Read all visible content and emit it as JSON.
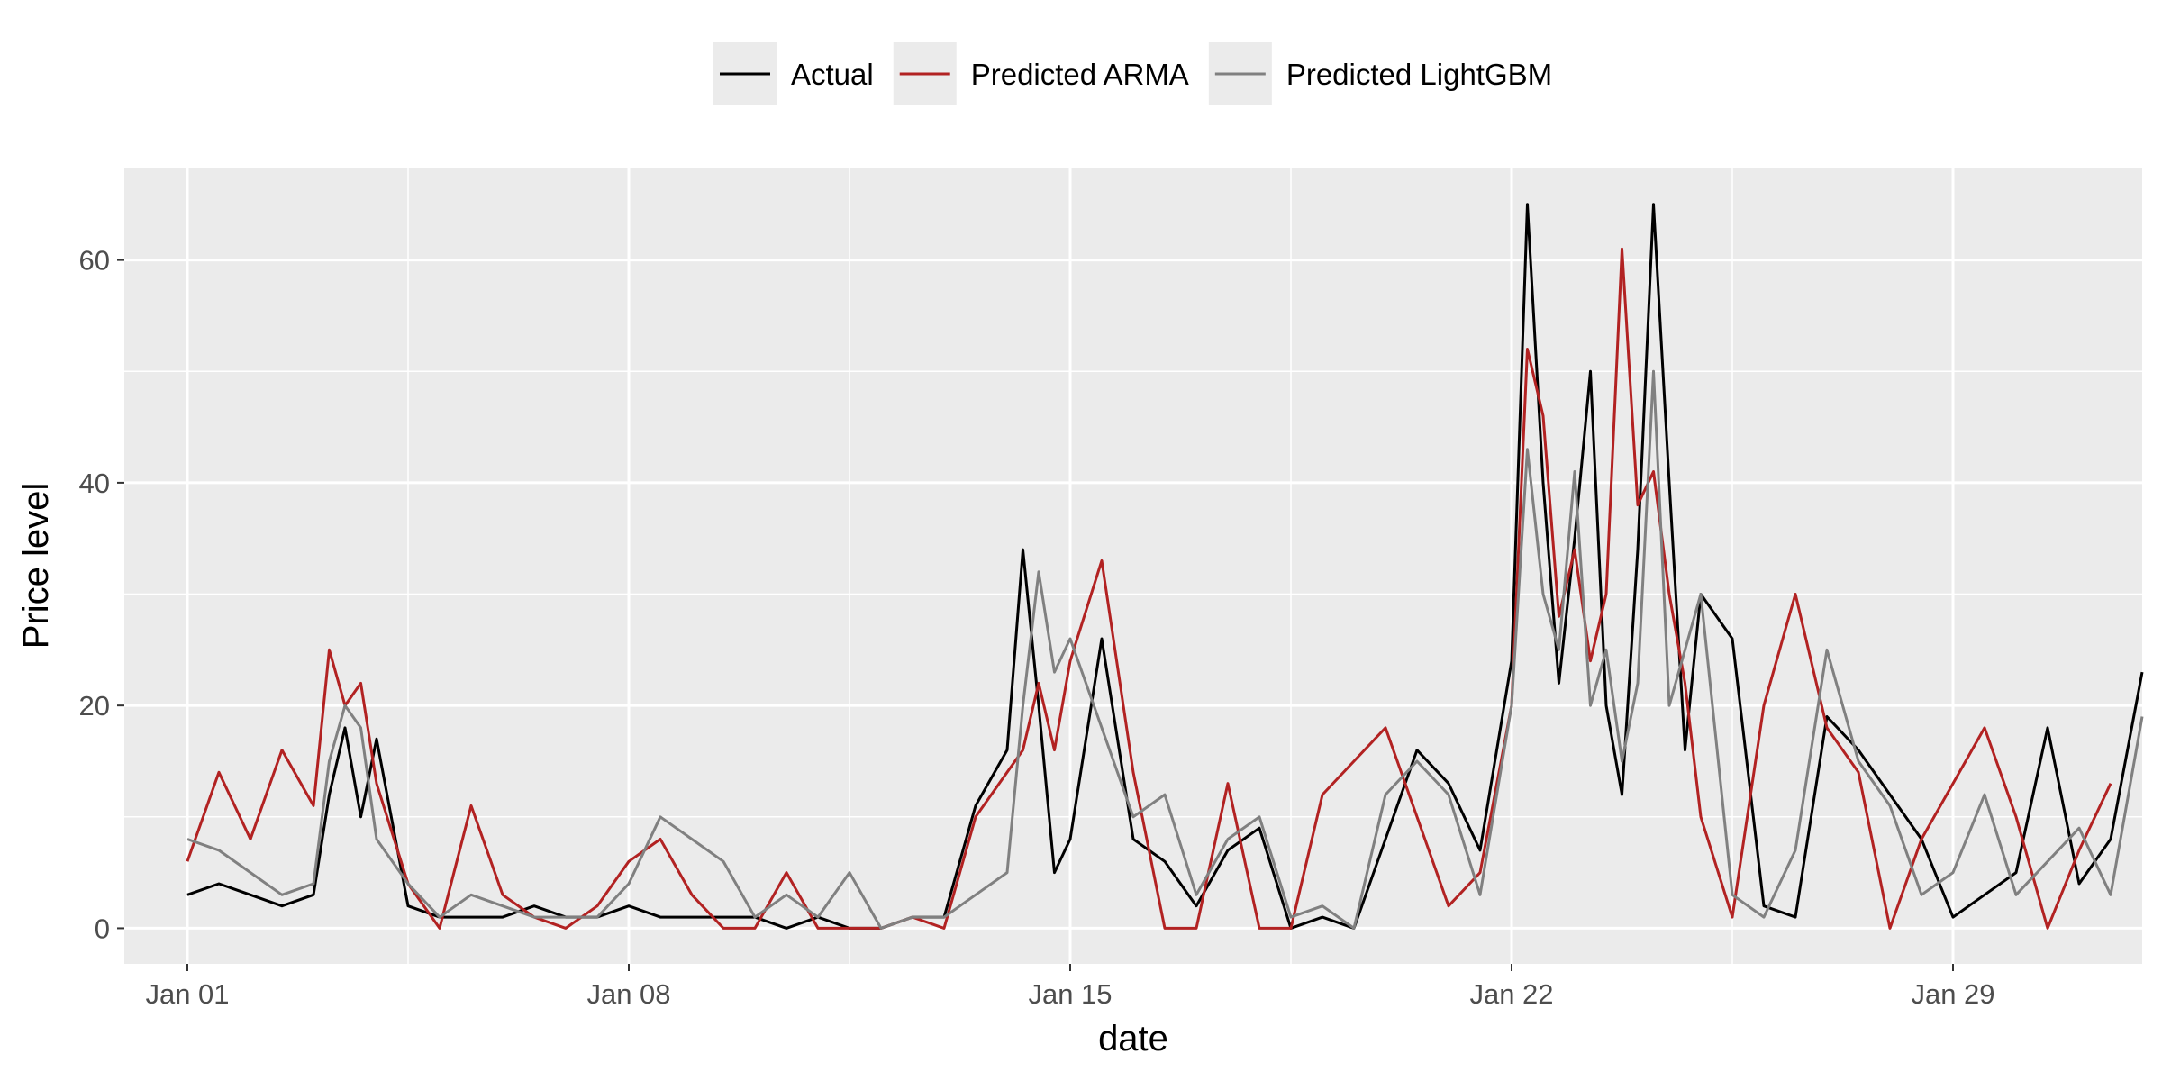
{
  "chart_data": {
    "type": "line",
    "title": "",
    "xlabel": "date",
    "ylabel": "Price level",
    "x_tick_labels": [
      "Jan 01",
      "Jan 08",
      "Jan 15",
      "Jan 22",
      "Jan 29"
    ],
    "y_tick_labels": [
      "0",
      "20",
      "40",
      "60"
    ],
    "y_ticks": [
      0,
      20,
      40,
      60
    ],
    "xlim": [
      "2018-12-31",
      "2019-02-01"
    ],
    "ylim": [
      -3.2,
      68.3
    ],
    "grid": true,
    "legend_position": "top",
    "series": [
      {
        "name": "Actual",
        "color": "#000000",
        "x": [
          "2019-01-01 00:00",
          "2019-01-01 12:00",
          "2019-01-02 00:00",
          "2019-01-02 12:00",
          "2019-01-03 00:00",
          "2019-01-03 06:00",
          "2019-01-03 12:00",
          "2019-01-03 18:00",
          "2019-01-04 00:00",
          "2019-01-04 12:00",
          "2019-01-05 00:00",
          "2019-01-05 12:00",
          "2019-01-06 00:00",
          "2019-01-06 12:00",
          "2019-01-07 00:00",
          "2019-01-07 12:00",
          "2019-01-08 00:00",
          "2019-01-08 12:00",
          "2019-01-09 00:00",
          "2019-01-09 12:00",
          "2019-01-10 00:00",
          "2019-01-10 12:00",
          "2019-01-11 00:00",
          "2019-01-11 12:00",
          "2019-01-12 00:00",
          "2019-01-12 12:00",
          "2019-01-13 00:00",
          "2019-01-13 12:00",
          "2019-01-14 00:00",
          "2019-01-14 06:00",
          "2019-01-14 12:00",
          "2019-01-14 18:00",
          "2019-01-15 00:00",
          "2019-01-15 12:00",
          "2019-01-16 00:00",
          "2019-01-16 12:00",
          "2019-01-17 00:00",
          "2019-01-17 12:00",
          "2019-01-18 00:00",
          "2019-01-18 12:00",
          "2019-01-19 00:00",
          "2019-01-19 12:00",
          "2019-01-20 00:00",
          "2019-01-20 12:00",
          "2019-01-21 00:00",
          "2019-01-21 12:00",
          "2019-01-22 00:00",
          "2019-01-22 06:00",
          "2019-01-22 12:00",
          "2019-01-22 18:00",
          "2019-01-23 00:00",
          "2019-01-23 06:00",
          "2019-01-23 12:00",
          "2019-01-23 18:00",
          "2019-01-24 00:00",
          "2019-01-24 06:00",
          "2019-01-24 12:00",
          "2019-01-24 18:00",
          "2019-01-25 00:00",
          "2019-01-25 12:00",
          "2019-01-26 00:00",
          "2019-01-26 12:00",
          "2019-01-27 00:00",
          "2019-01-27 12:00",
          "2019-01-28 00:00",
          "2019-01-28 12:00",
          "2019-01-29 00:00",
          "2019-01-29 12:00",
          "2019-01-30 00:00",
          "2019-01-30 12:00",
          "2019-01-31 00:00",
          "2019-01-31 12:00",
          "2019-02-01 00:00"
        ],
        "values": [
          3,
          4,
          3,
          2,
          3,
          12,
          18,
          10,
          17,
          2,
          1,
          1,
          1,
          2,
          1,
          1,
          2,
          1,
          1,
          1,
          1,
          0,
          1,
          0,
          0,
          1,
          1,
          11,
          16,
          34,
          20,
          5,
          8,
          26,
          8,
          6,
          2,
          7,
          9,
          0,
          1,
          0,
          8,
          16,
          13,
          7,
          24,
          65,
          40,
          22,
          35,
          50,
          20,
          12,
          34,
          65,
          40,
          16,
          30,
          26,
          2,
          1,
          19,
          16,
          12,
          8,
          1,
          3,
          5,
          18,
          4,
          8,
          23
        ]
      },
      {
        "name": "Predicted ARMA",
        "color": "#b22222",
        "x": [
          "2019-01-01 00:00",
          "2019-01-01 12:00",
          "2019-01-02 00:00",
          "2019-01-02 12:00",
          "2019-01-03 00:00",
          "2019-01-03 06:00",
          "2019-01-03 12:00",
          "2019-01-03 18:00",
          "2019-01-04 00:00",
          "2019-01-04 12:00",
          "2019-01-05 00:00",
          "2019-01-05 12:00",
          "2019-01-06 00:00",
          "2019-01-06 12:00",
          "2019-01-07 00:00",
          "2019-01-07 12:00",
          "2019-01-08 00:00",
          "2019-01-08 12:00",
          "2019-01-09 00:00",
          "2019-01-09 12:00",
          "2019-01-10 00:00",
          "2019-01-10 12:00",
          "2019-01-11 00:00",
          "2019-01-11 12:00",
          "2019-01-12 00:00",
          "2019-01-12 12:00",
          "2019-01-13 00:00",
          "2019-01-13 12:00",
          "2019-01-14 00:00",
          "2019-01-14 06:00",
          "2019-01-14 12:00",
          "2019-01-14 18:00",
          "2019-01-15 00:00",
          "2019-01-15 12:00",
          "2019-01-16 00:00",
          "2019-01-16 12:00",
          "2019-01-17 00:00",
          "2019-01-17 12:00",
          "2019-01-18 00:00",
          "2019-01-18 12:00",
          "2019-01-19 00:00",
          "2019-01-19 12:00",
          "2019-01-20 00:00",
          "2019-01-20 12:00",
          "2019-01-21 00:00",
          "2019-01-21 12:00",
          "2019-01-22 00:00",
          "2019-01-22 06:00",
          "2019-01-22 12:00",
          "2019-01-22 18:00",
          "2019-01-23 00:00",
          "2019-01-23 06:00",
          "2019-01-23 12:00",
          "2019-01-23 18:00",
          "2019-01-24 00:00",
          "2019-01-24 06:00",
          "2019-01-24 12:00",
          "2019-01-24 18:00",
          "2019-01-25 00:00",
          "2019-01-25 12:00",
          "2019-01-26 00:00",
          "2019-01-26 12:00",
          "2019-01-27 00:00",
          "2019-01-27 12:00",
          "2019-01-28 00:00",
          "2019-01-28 12:00",
          "2019-01-29 00:00",
          "2019-01-29 12:00",
          "2019-01-30 00:00",
          "2019-01-30 12:00",
          "2019-01-31 00:00",
          "2019-01-31 12:00"
        ],
        "values": [
          6,
          14,
          8,
          16,
          11,
          25,
          20,
          22,
          13,
          4,
          0,
          11,
          3,
          1,
          0,
          2,
          6,
          8,
          3,
          0,
          0,
          5,
          0,
          0,
          0,
          1,
          0,
          10,
          14,
          16,
          22,
          16,
          24,
          33,
          14,
          0,
          0,
          13,
          0,
          0,
          12,
          15,
          18,
          10,
          2,
          5,
          20,
          52,
          46,
          28,
          34,
          24,
          30,
          61,
          38,
          41,
          30,
          22,
          10,
          1,
          20,
          30,
          18,
          14,
          0,
          8,
          13,
          18,
          10,
          0,
          7,
          13
        ]
      },
      {
        "name": "Predicted LightGBM",
        "color": "#808080",
        "x": [
          "2019-01-01 00:00",
          "2019-01-01 12:00",
          "2019-01-02 00:00",
          "2019-01-02 12:00",
          "2019-01-03 00:00",
          "2019-01-03 06:00",
          "2019-01-03 12:00",
          "2019-01-03 18:00",
          "2019-01-04 00:00",
          "2019-01-04 12:00",
          "2019-01-05 00:00",
          "2019-01-05 12:00",
          "2019-01-06 00:00",
          "2019-01-06 12:00",
          "2019-01-07 00:00",
          "2019-01-07 12:00",
          "2019-01-08 00:00",
          "2019-01-08 12:00",
          "2019-01-09 00:00",
          "2019-01-09 12:00",
          "2019-01-10 00:00",
          "2019-01-10 12:00",
          "2019-01-11 00:00",
          "2019-01-11 12:00",
          "2019-01-12 00:00",
          "2019-01-12 12:00",
          "2019-01-13 00:00",
          "2019-01-13 12:00",
          "2019-01-14 00:00",
          "2019-01-14 06:00",
          "2019-01-14 12:00",
          "2019-01-14 18:00",
          "2019-01-15 00:00",
          "2019-01-15 12:00",
          "2019-01-16 00:00",
          "2019-01-16 12:00",
          "2019-01-17 00:00",
          "2019-01-17 12:00",
          "2019-01-18 00:00",
          "2019-01-18 12:00",
          "2019-01-19 00:00",
          "2019-01-19 12:00",
          "2019-01-20 00:00",
          "2019-01-20 12:00",
          "2019-01-21 00:00",
          "2019-01-21 12:00",
          "2019-01-22 00:00",
          "2019-01-22 06:00",
          "2019-01-22 12:00",
          "2019-01-22 18:00",
          "2019-01-23 00:00",
          "2019-01-23 06:00",
          "2019-01-23 12:00",
          "2019-01-23 18:00",
          "2019-01-24 00:00",
          "2019-01-24 06:00",
          "2019-01-24 12:00",
          "2019-01-24 18:00",
          "2019-01-25 00:00",
          "2019-01-25 12:00",
          "2019-01-26 00:00",
          "2019-01-26 12:00",
          "2019-01-27 00:00",
          "2019-01-27 12:00",
          "2019-01-28 00:00",
          "2019-01-28 12:00",
          "2019-01-29 00:00",
          "2019-01-29 12:00",
          "2019-01-30 00:00",
          "2019-01-30 12:00",
          "2019-01-31 00:00",
          "2019-01-31 12:00",
          "2019-02-01 00:00"
        ],
        "values": [
          8,
          7,
          5,
          3,
          4,
          15,
          20,
          18,
          8,
          4,
          1,
          3,
          2,
          1,
          1,
          1,
          4,
          10,
          8,
          6,
          1,
          3,
          1,
          5,
          0,
          1,
          1,
          3,
          5,
          20,
          32,
          23,
          26,
          18,
          10,
          12,
          3,
          8,
          10,
          1,
          2,
          0,
          12,
          15,
          12,
          3,
          20,
          43,
          30,
          25,
          41,
          20,
          25,
          15,
          22,
          50,
          20,
          25,
          30,
          3,
          1,
          7,
          25,
          15,
          11,
          3,
          5,
          12,
          3,
          6,
          9,
          3,
          19
        ]
      }
    ]
  }
}
